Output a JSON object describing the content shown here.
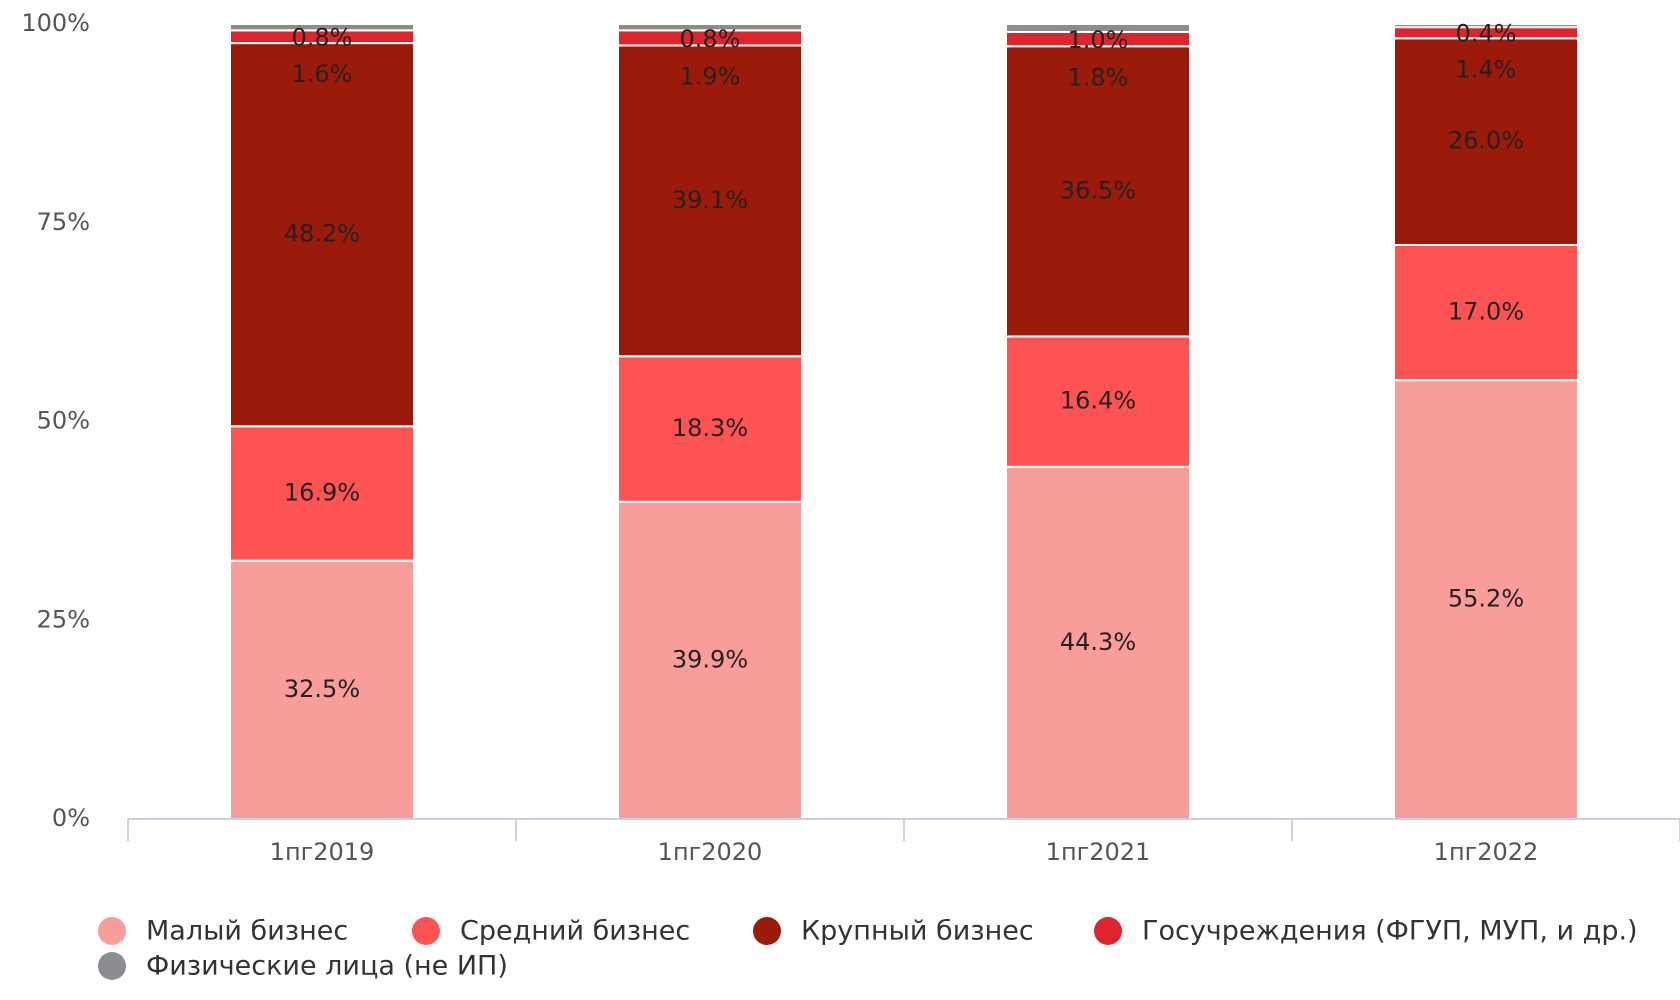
{
  "chart_data": {
    "type": "stacked_bar",
    "categories": [
      "1пг2019",
      "1пг2020",
      "1пг2021",
      "1пг2022"
    ],
    "series": [
      {
        "name": "Малый бизнес",
        "color": "#f99d9b",
        "values": [
          32.5,
          39.9,
          44.3,
          55.2
        ],
        "value_labels": [
          "32.5%",
          "39.9%",
          "44.3%",
          "55.2%"
        ]
      },
      {
        "name": "Средний бизнес",
        "color": "#fe5353",
        "values": [
          16.9,
          18.3,
          16.4,
          17.0
        ],
        "value_labels": [
          "16.9%",
          "18.3%",
          "16.4%",
          "17.0%"
        ]
      },
      {
        "name": "Крупный бизнес",
        "color": "#9b1a0a",
        "values": [
          48.2,
          39.1,
          36.5,
          26.0
        ],
        "value_labels": [
          "48.2%",
          "39.1%",
          "36.5%",
          "26.0%"
        ]
      },
      {
        "name": "Госучреждения (ФГУП, МУП, и др.)",
        "color": "#e0242b",
        "values": [
          1.6,
          1.9,
          1.8,
          1.4
        ],
        "value_labels": [
          "1.6%",
          "1.9%",
          "1.8%",
          "1.4%"
        ]
      },
      {
        "name": "Физические лица (не ИП)",
        "color": "#8a8c90",
        "values": [
          0.8,
          0.8,
          1.0,
          0.4
        ],
        "value_labels": [
          "0.8%",
          "0.8%",
          "1.0%",
          "0.4%"
        ]
      }
    ],
    "ylim": [
      0,
      100
    ],
    "yticks": [
      {
        "value": 0,
        "label": "0%"
      },
      {
        "value": 25,
        "label": "25%"
      },
      {
        "value": 50,
        "label": "50%"
      },
      {
        "value": 75,
        "label": "75%"
      },
      {
        "value": 100,
        "label": "100%"
      }
    ],
    "grid": false
  }
}
